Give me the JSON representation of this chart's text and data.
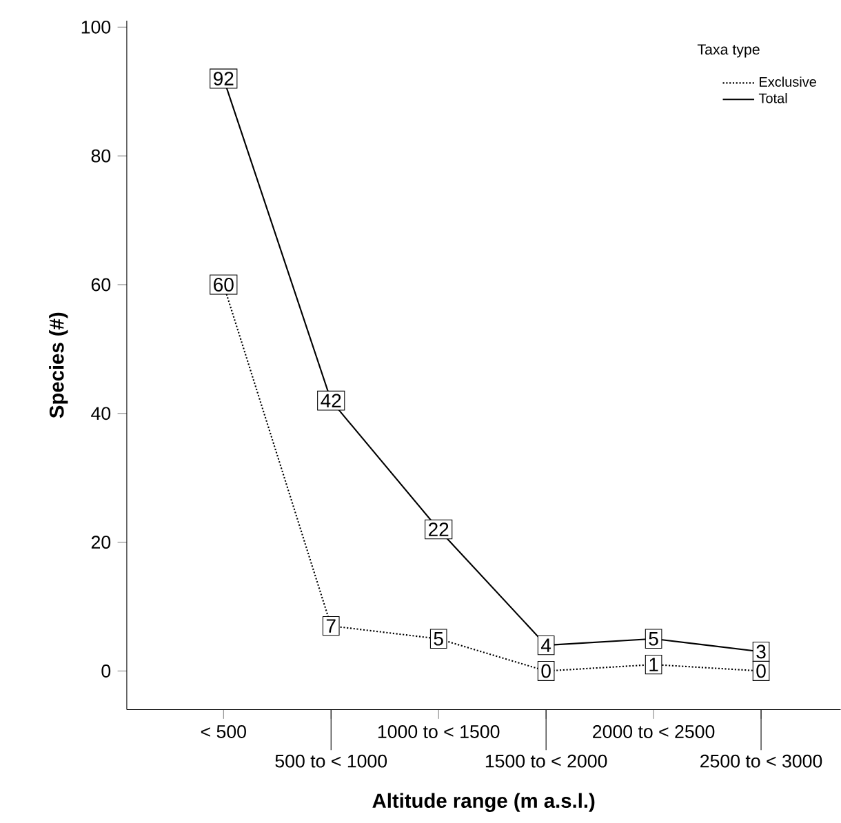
{
  "chart_data": {
    "type": "line",
    "xlabel": "Altitude range (m a.s.l.)",
    "ylabel": "Species (#)",
    "legend_title": "Taxa type",
    "categories": [
      "< 500",
      "500 to < 1000",
      "1000  to < 1500",
      "1500 to < 2000",
      "2000 to < 2500",
      "2500 to < 3000"
    ],
    "series": [
      {
        "name": "Exclusive",
        "color": "#000000",
        "line_style": "dotted",
        "values": [
          60,
          7,
          5,
          0,
          1,
          0
        ]
      },
      {
        "name": "Total",
        "color": "#000000",
        "line_style": "solid",
        "values": [
          92,
          42,
          22,
          4,
          5,
          3
        ]
      }
    ],
    "ylim": [
      -6,
      101
    ],
    "yticks": [
      0,
      20,
      40,
      60,
      80,
      100
    ],
    "data_labels": true,
    "legend": "top right",
    "marker": "square",
    "grid": false
  }
}
